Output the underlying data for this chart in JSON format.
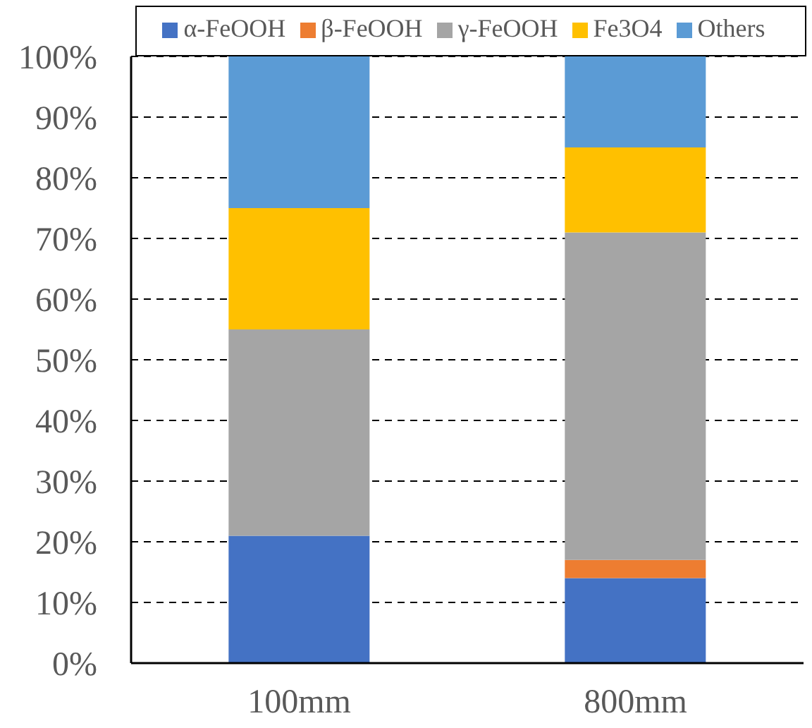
{
  "chart_data": {
    "type": "bar",
    "stacked": true,
    "categories": [
      "100mm",
      "800mm"
    ],
    "series": [
      {
        "name": "α-FeOOH",
        "color": "#4472c4",
        "values": [
          21,
          14
        ]
      },
      {
        "name": "β-FeOOH",
        "color": "#ed7d31",
        "values": [
          0,
          3
        ]
      },
      {
        "name": "γ-FeOOH",
        "color": "#a5a5a5",
        "values": [
          34,
          54
        ]
      },
      {
        "name": "Fe3O4",
        "color": "#ffc000",
        "values": [
          20,
          14
        ]
      },
      {
        "name": "Others",
        "color": "#5b9bd5",
        "values": [
          25,
          15
        ]
      }
    ],
    "ylim": [
      0,
      100
    ],
    "yticks": [
      {
        "value": 0,
        "label": "0%"
      },
      {
        "value": 10,
        "label": "10%"
      },
      {
        "value": 20,
        "label": "20%"
      },
      {
        "value": 30,
        "label": "30%"
      },
      {
        "value": 40,
        "label": "40%"
      },
      {
        "value": 50,
        "label": "50%"
      },
      {
        "value": 60,
        "label": "60%"
      },
      {
        "value": 70,
        "label": "70%"
      },
      {
        "value": 80,
        "label": "80%"
      },
      {
        "value": 90,
        "label": "90%"
      },
      {
        "value": 100,
        "label": "100%"
      }
    ],
    "grid": "y",
    "legend": "top"
  }
}
